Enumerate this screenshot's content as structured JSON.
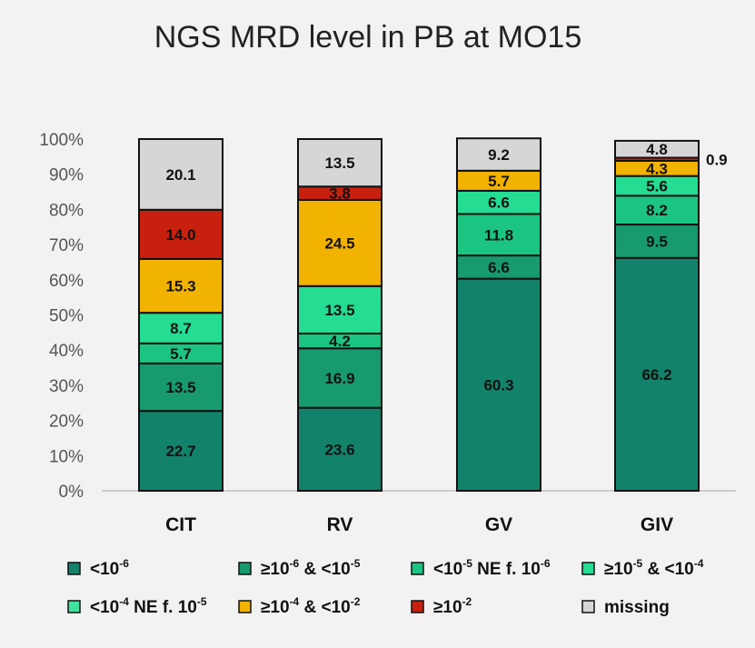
{
  "chart_data": {
    "type": "bar",
    "stacked": true,
    "title": "NGS MRD level in PB at MO15",
    "xlabel": "",
    "ylabel": "",
    "ylim": [
      0,
      100
    ],
    "yticks": [
      "0%",
      "10%",
      "20%",
      "30%",
      "40%",
      "50%",
      "60%",
      "70%",
      "80%",
      "90%",
      "100%"
    ],
    "categories": [
      "CIT",
      "RV",
      "GV",
      "GIV"
    ],
    "series": [
      {
        "name": "<10-6",
        "color": "#12836a",
        "legend_parts": [
          {
            "t": "<10",
            "s": false
          },
          {
            "t": "-6",
            "s": true
          }
        ],
        "values": [
          22.7,
          23.6,
          60.3,
          66.2
        ],
        "labels": [
          "22.7",
          "23.6",
          "60.3",
          "66.2"
        ]
      },
      {
        "name": "≥10-6 & <10-5",
        "color": "#179a6e",
        "legend_parts": [
          {
            "t": "≥10",
            "s": false
          },
          {
            "t": "-6",
            "s": true
          },
          {
            "t": " & <10",
            "s": false
          },
          {
            "t": "-5",
            "s": true
          }
        ],
        "values": [
          13.5,
          16.9,
          6.6,
          9.5
        ],
        "labels": [
          "13.5",
          "16.9",
          "6.6",
          "9.5"
        ]
      },
      {
        "name": "<10-5 NE f. 10-6",
        "color": "#1cc482",
        "legend_parts": [
          {
            "t": "<10",
            "s": false
          },
          {
            "t": "-5",
            "s": true
          },
          {
            "t": " NE f. 10",
            "s": false
          },
          {
            "t": "-6",
            "s": true
          }
        ],
        "values": [
          5.7,
          4.2,
          11.8,
          8.2
        ],
        "labels": [
          "5.7",
          "4.2",
          "11.8",
          "8.2"
        ]
      },
      {
        "name": "≥10-5 & <10-4",
        "color": "#24dc92",
        "legend_parts": [
          {
            "t": "≥10",
            "s": false
          },
          {
            "t": "-5",
            "s": true
          },
          {
            "t": " & <10",
            "s": false
          },
          {
            "t": "-4",
            "s": true
          }
        ],
        "values": [
          8.7,
          13.5,
          6.6,
          5.6
        ],
        "labels": [
          "8.7",
          "13.5",
          "6.6",
          "5.6"
        ]
      },
      {
        "name": "<10-4 NE f. 10-5",
        "color": "#40e39e",
        "legend_parts": [
          {
            "t": "<10",
            "s": false
          },
          {
            "t": "-4",
            "s": true
          },
          {
            "t": " NE f. 10",
            "s": false
          },
          {
            "t": "-5",
            "s": true
          }
        ],
        "values": [
          0,
          0,
          0,
          0
        ],
        "labels": [
          "",
          "",
          "",
          ""
        ]
      },
      {
        "name": "≥10-4 & <10-2",
        "color": "#f2b200",
        "legend_parts": [
          {
            "t": "≥10",
            "s": false
          },
          {
            "t": "-4",
            "s": true
          },
          {
            "t": " & <10",
            "s": false
          },
          {
            "t": "-2",
            "s": true
          }
        ],
        "values": [
          15.3,
          24.5,
          5.7,
          4.3
        ],
        "labels": [
          "15.3",
          "24.5",
          "5.7",
          "4.3"
        ]
      },
      {
        "name": "≥10-2",
        "color": "#c8200e",
        "legend_parts": [
          {
            "t": "≥10",
            "s": false
          },
          {
            "t": "-2",
            "s": true
          }
        ],
        "values": [
          14.0,
          3.8,
          0,
          0.9
        ],
        "labels": [
          "14.0",
          "3.8",
          "",
          ""
        ]
      },
      {
        "name": "missing",
        "color": "#d6d6d6",
        "legend_parts": [
          {
            "t": "missing",
            "s": false
          }
        ],
        "values": [
          20.1,
          13.5,
          9.2,
          4.8
        ],
        "labels": [
          "20.1",
          "13.5",
          "9.2",
          "4.8"
        ]
      }
    ],
    "annotations": [
      {
        "category": "GIV",
        "series": "≥10-2",
        "text": "0.9"
      }
    ],
    "legend_position": "bottom"
  }
}
